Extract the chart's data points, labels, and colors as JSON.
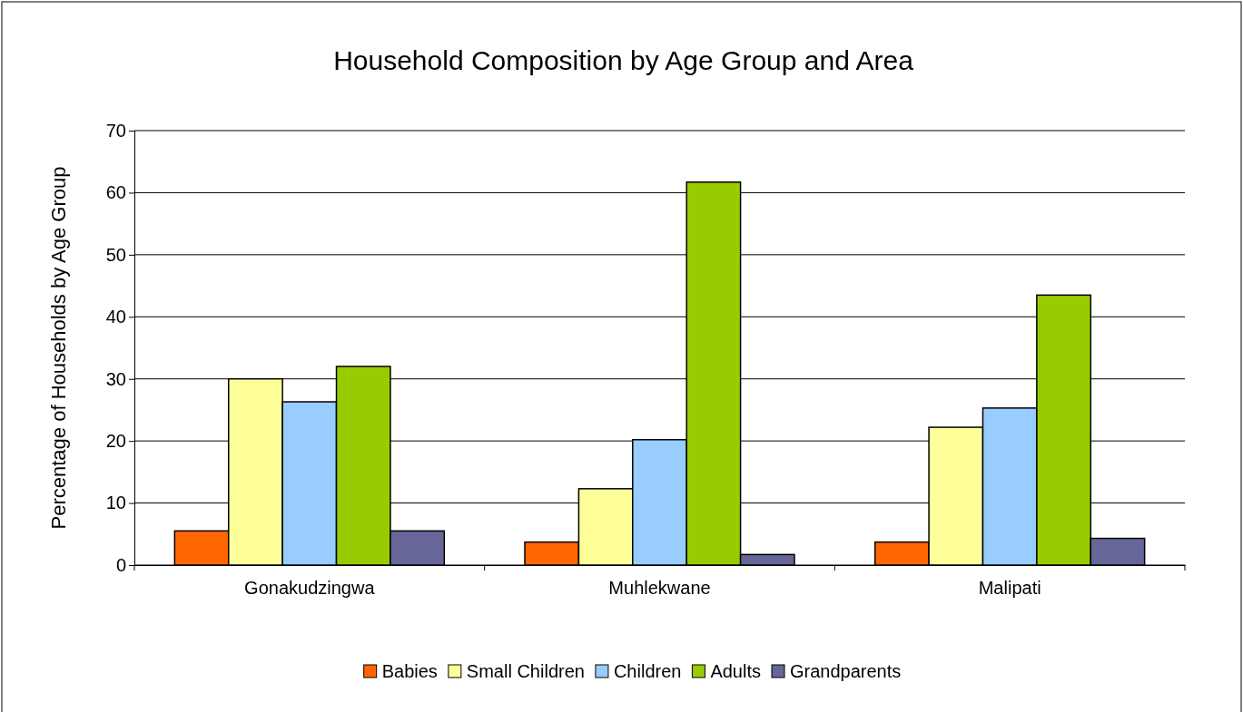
{
  "chart_data": {
    "type": "bar",
    "title": "Household Composition by Age Group and Area",
    "ylabel": "Percentage of  Households by Age Group",
    "categories": [
      "Gonakudzingwa",
      "Muhlekwane",
      "Malipati"
    ],
    "series": [
      {
        "name": "Babies",
        "color": "#ff6600",
        "values": [
          5.5,
          3.7,
          3.7
        ]
      },
      {
        "name": "Small Children",
        "color": "#ffff99",
        "values": [
          30.0,
          12.3,
          22.2
        ]
      },
      {
        "name": "Children",
        "color": "#99ccff",
        "values": [
          26.3,
          20.2,
          25.3
        ]
      },
      {
        "name": "Adults",
        "color": "#99cc00",
        "values": [
          32.0,
          61.7,
          43.5
        ]
      },
      {
        "name": "Grandparents",
        "color": "#666699",
        "values": [
          5.5,
          1.7,
          4.3
        ]
      }
    ],
    "ylim": [
      0,
      70
    ],
    "yticks": [
      0,
      10,
      20,
      30,
      40,
      50,
      60,
      70
    ],
    "grid": "y",
    "legend": "bottom"
  }
}
